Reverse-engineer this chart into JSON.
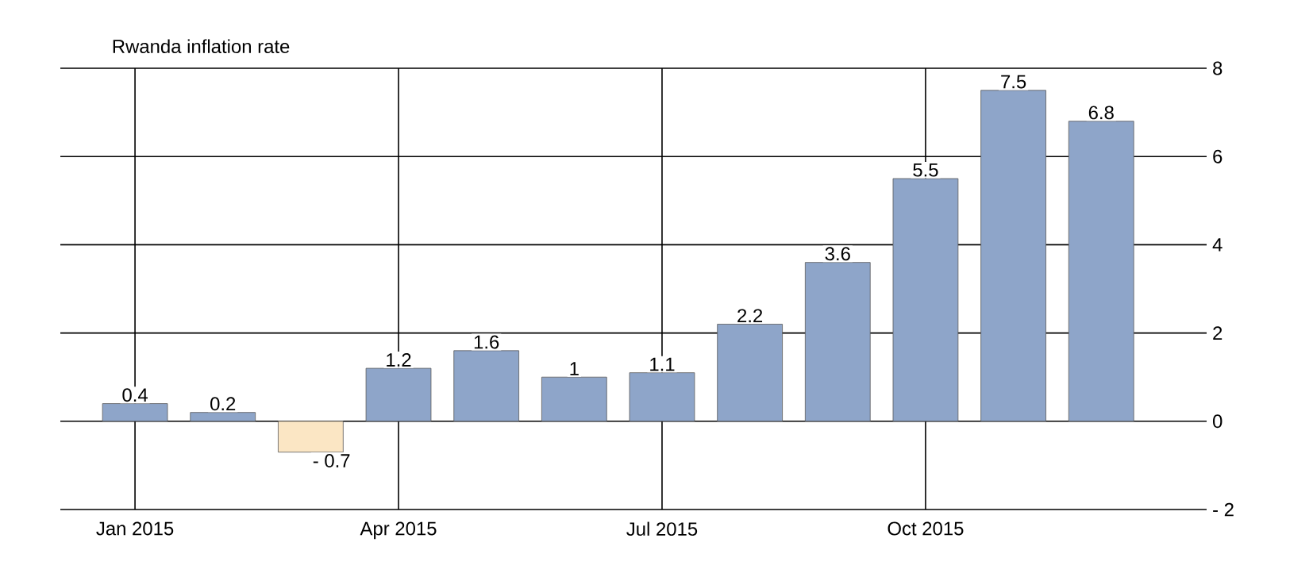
{
  "chart_data": {
    "type": "bar",
    "title": "Rwanda inflation rate",
    "categories": [
      "Jan 2015",
      null,
      null,
      "Apr 2015",
      null,
      null,
      "Jul 2015",
      null,
      null,
      "Oct 2015",
      null,
      null
    ],
    "values": [
      0.4,
      0.2,
      -0.7,
      1.2,
      1.6,
      1,
      1.1,
      2.2,
      3.6,
      5.5,
      7.5,
      6.8
    ],
    "value_labels": [
      "0.4",
      "0.2",
      "- 0.7",
      "1.2",
      "1.6",
      "1",
      "1.1",
      "2.2",
      "3.6",
      "5.5",
      "7.5",
      "6.8"
    ],
    "colors": [
      "#8ea5c9",
      "#8ea5c9",
      "#fbe6c4",
      "#8ea5c9",
      "#8ea5c9",
      "#8ea5c9",
      "#8ea5c9",
      "#8ea5c9",
      "#8ea5c9",
      "#8ea5c9",
      "#8ea5c9",
      "#8ea5c9"
    ],
    "ylim": [
      -2,
      8
    ],
    "yticks": [
      {
        "value": -2,
        "label": "- 2"
      },
      0,
      2,
      4,
      6,
      8
    ],
    "grid": true
  }
}
